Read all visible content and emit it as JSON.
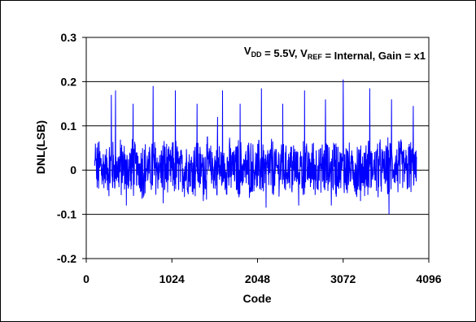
{
  "chart_data": {
    "type": "line",
    "title": "",
    "xlabel": "Code",
    "ylabel": "DNL(LSB)",
    "xlim": [
      0,
      4096
    ],
    "ylim": [
      -0.2,
      0.3
    ],
    "x_ticks": [
      0,
      1024,
      2048,
      3072,
      4096
    ],
    "x_tick_labels": [
      "0",
      "1024",
      "2048",
      "3072",
      "4096"
    ],
    "y_ticks": [
      -0.2,
      -0.1,
      0,
      0.1,
      0.2,
      0.3
    ],
    "y_tick_labels": [
      "-0.2",
      "-0.1",
      "0",
      "0.1",
      "0.2",
      "0.3"
    ],
    "grid": "horizontal",
    "annotation": {
      "parts": [
        {
          "text": "V",
          "sub": false
        },
        {
          "text": "DD",
          "sub": true
        },
        {
          "text": " = 5.5V,  V",
          "sub": false
        },
        {
          "text": "REF",
          "sub": true
        },
        {
          "text": " = Internal,  Gain = x1",
          "sub": false
        }
      ]
    },
    "series": [
      {
        "color": "#0000ff",
        "x_range": [
          100,
          3950
        ],
        "y_typical_range": [
          -0.06,
          0.07
        ],
        "max": {
          "x": 3072,
          "y": 0.205
        },
        "min": {
          "x": 3620,
          "y": -0.1
        },
        "spikes": [
          {
            "x": 110,
            "y": 0.06
          },
          {
            "x": 300,
            "y": 0.17
          },
          {
            "x": 350,
            "y": 0.18
          },
          {
            "x": 560,
            "y": 0.15
          },
          {
            "x": 800,
            "y": 0.19
          },
          {
            "x": 1065,
            "y": 0.18
          },
          {
            "x": 1325,
            "y": 0.15
          },
          {
            "x": 1570,
            "y": 0.12
          },
          {
            "x": 1630,
            "y": 0.18
          },
          {
            "x": 1840,
            "y": 0.15
          },
          {
            "x": 2095,
            "y": 0.185
          },
          {
            "x": 2350,
            "y": 0.15
          },
          {
            "x": 2610,
            "y": 0.18
          },
          {
            "x": 2860,
            "y": 0.16
          },
          {
            "x": 3072,
            "y": 0.205
          },
          {
            "x": 3390,
            "y": 0.185
          },
          {
            "x": 3650,
            "y": 0.16
          },
          {
            "x": 3910,
            "y": 0.145
          }
        ],
        "dips": [
          {
            "x": 480,
            "y": -0.08
          },
          {
            "x": 920,
            "y": -0.075
          },
          {
            "x": 1400,
            "y": -0.07
          },
          {
            "x": 2150,
            "y": -0.085
          },
          {
            "x": 2540,
            "y": -0.08
          },
          {
            "x": 2930,
            "y": -0.08
          },
          {
            "x": 3280,
            "y": -0.07
          },
          {
            "x": 3620,
            "y": -0.1
          }
        ]
      }
    ]
  }
}
